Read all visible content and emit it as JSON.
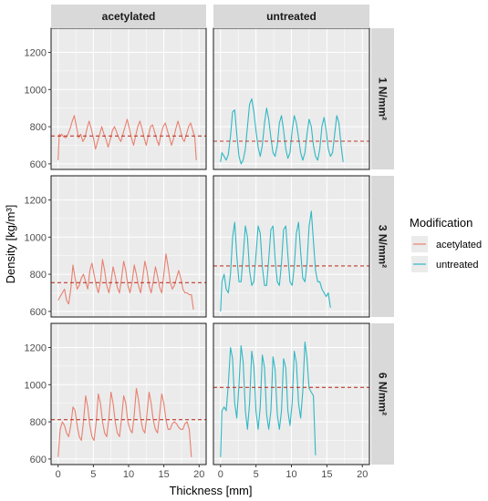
{
  "chart_data": {
    "type": "line",
    "title": "",
    "xlabel": "Thickness [mm]",
    "ylabel": "Density [kg/m³]",
    "xlim": [
      -1,
      21
    ],
    "ylim": [
      570,
      1330
    ],
    "x_ticks": [
      0,
      5,
      10,
      15,
      20
    ],
    "y_ticks": [
      600,
      800,
      1000,
      1200
    ],
    "grid": true,
    "facet_cols": [
      "acetylated",
      "untreated"
    ],
    "facet_rows": [
      "1 N/mm²",
      "3 N/mm²",
      "6 N/mm²"
    ],
    "legend": {
      "title": "Modification",
      "position": "right",
      "entries": [
        {
          "label": "acetylated",
          "color": "#E8806F"
        },
        {
          "label": "untreated",
          "color": "#2FB8C3"
        }
      ]
    },
    "mean_line_color": "#C0392B",
    "panels": [
      {
        "row": "1 N/mm²",
        "col": "acetylated",
        "series": "acetylated",
        "mean": 750,
        "x": [
          0,
          0.15,
          0.3,
          0.5,
          0.8,
          1.1,
          1.4,
          1.7,
          2.0,
          2.3,
          2.6,
          2.9,
          3.2,
          3.5,
          3.8,
          4.1,
          4.4,
          4.7,
          5.0,
          5.3,
          5.6,
          5.9,
          6.2,
          6.5,
          6.8,
          7.1,
          7.4,
          7.7,
          8.0,
          8.3,
          8.6,
          8.9,
          9.2,
          9.5,
          9.8,
          10.1,
          10.4,
          10.7,
          11.0,
          11.3,
          11.6,
          11.9,
          12.2,
          12.5,
          12.8,
          13.1,
          13.4,
          13.7,
          14.0,
          14.3,
          14.6,
          14.9,
          15.2,
          15.5,
          15.8,
          16.1,
          16.4,
          16.7,
          17.0,
          17.3,
          17.6,
          17.9,
          18.2,
          18.5,
          18.8,
          19.1,
          19.4,
          19.6
        ],
        "y": [
          620,
          760,
          750,
          760,
          745,
          740,
          760,
          790,
          830,
          860,
          800,
          740,
          760,
          720,
          740,
          790,
          830,
          790,
          740,
          680,
          720,
          760,
          800,
          760,
          730,
          690,
          730,
          780,
          800,
          770,
          740,
          720,
          760,
          800,
          840,
          790,
          740,
          700,
          750,
          800,
          830,
          790,
          740,
          700,
          750,
          800,
          810,
          770,
          730,
          700,
          760,
          800,
          820,
          780,
          740,
          700,
          740,
          790,
          830,
          790,
          740,
          720,
          760,
          800,
          820,
          780,
          740,
          620
        ]
      },
      {
        "row": "1 N/mm²",
        "col": "untreated",
        "series": "untreated",
        "mean": 722,
        "x": [
          0,
          0.2,
          0.5,
          0.8,
          1.1,
          1.4,
          1.7,
          2.0,
          2.3,
          2.6,
          2.9,
          3.2,
          3.5,
          3.8,
          4.1,
          4.4,
          4.7,
          5.0,
          5.3,
          5.6,
          5.9,
          6.2,
          6.5,
          6.8,
          7.1,
          7.4,
          7.7,
          8.0,
          8.3,
          8.6,
          8.9,
          9.2,
          9.5,
          9.8,
          10.1,
          10.4,
          10.7,
          11.0,
          11.3,
          11.6,
          11.9,
          12.2,
          12.5,
          12.8,
          13.1,
          13.4,
          13.7,
          14.0,
          14.3,
          14.6,
          14.9,
          15.2,
          15.5,
          15.8,
          16.1,
          16.4,
          16.7,
          17.0,
          17.3
        ],
        "y": [
          610,
          660,
          640,
          620,
          650,
          750,
          880,
          890,
          760,
          640,
          600,
          620,
          680,
          800,
          920,
          950,
          880,
          780,
          690,
          640,
          700,
          820,
          900,
          840,
          740,
          660,
          640,
          700,
          820,
          860,
          780,
          680,
          630,
          660,
          780,
          860,
          820,
          740,
          660,
          620,
          660,
          760,
          840,
          800,
          700,
          640,
          620,
          680,
          800,
          850,
          780,
          680,
          640,
          660,
          760,
          860,
          820,
          700,
          610
        ]
      },
      {
        "row": "3 N/mm²",
        "col": "acetylated",
        "series": "acetylated",
        "mean": 755,
        "x": [
          0,
          0.3,
          0.6,
          0.9,
          1.2,
          1.5,
          1.8,
          2.1,
          2.4,
          2.7,
          3.0,
          3.3,
          3.6,
          3.9,
          4.2,
          4.5,
          4.8,
          5.1,
          5.4,
          5.7,
          6.0,
          6.3,
          6.6,
          6.9,
          7.2,
          7.5,
          7.8,
          8.1,
          8.4,
          8.7,
          9.0,
          9.3,
          9.6,
          9.9,
          10.2,
          10.5,
          10.8,
          11.1,
          11.4,
          11.7,
          12.0,
          12.3,
          12.6,
          12.9,
          13.2,
          13.5,
          13.8,
          14.1,
          14.4,
          14.7,
          15.0,
          15.3,
          15.6,
          15.9,
          16.2,
          16.5,
          16.8,
          17.1,
          17.4,
          17.7,
          18.0,
          18.3,
          18.6,
          18.9,
          19.2
        ],
        "y": [
          660,
          680,
          700,
          720,
          660,
          640,
          720,
          850,
          780,
          720,
          740,
          780,
          800,
          760,
          720,
          820,
          860,
          800,
          740,
          700,
          760,
          880,
          820,
          740,
          700,
          760,
          840,
          790,
          730,
          700,
          780,
          870,
          820,
          740,
          700,
          760,
          850,
          800,
          740,
          700,
          780,
          870,
          820,
          740,
          700,
          760,
          840,
          790,
          730,
          700,
          800,
          910,
          840,
          760,
          720,
          740,
          780,
          820,
          780,
          720,
          700,
          700,
          690,
          690,
          610
        ]
      },
      {
        "row": "3 N/mm²",
        "col": "untreated",
        "series": "untreated",
        "mean": 845,
        "x": [
          0,
          0.2,
          0.5,
          0.8,
          1.1,
          1.4,
          1.7,
          2.0,
          2.3,
          2.6,
          2.9,
          3.2,
          3.5,
          3.8,
          4.1,
          4.4,
          4.7,
          5.0,
          5.3,
          5.6,
          5.9,
          6.2,
          6.5,
          6.8,
          7.1,
          7.4,
          7.7,
          8.0,
          8.3,
          8.6,
          8.9,
          9.2,
          9.5,
          9.8,
          10.1,
          10.4,
          10.7,
          11.0,
          11.3,
          11.6,
          11.9,
          12.2,
          12.5,
          12.8,
          13.1,
          13.4,
          13.7,
          14.0,
          14.3,
          14.6,
          14.9,
          15.2,
          15.5
        ],
        "y": [
          600,
          760,
          800,
          720,
          700,
          800,
          1000,
          1080,
          900,
          760,
          760,
          900,
          1060,
          1000,
          820,
          740,
          760,
          900,
          1060,
          1020,
          840,
          740,
          740,
          880,
          1040,
          1060,
          880,
          760,
          740,
          860,
          1040,
          1060,
          900,
          760,
          740,
          840,
          1020,
          1080,
          920,
          780,
          760,
          860,
          1060,
          1140,
          980,
          820,
          760,
          760,
          720,
          700,
          680,
          700,
          620
        ]
      },
      {
        "row": "6 N/mm²",
        "col": "acetylated",
        "series": "acetylated",
        "mean": 812,
        "x": [
          0,
          0.3,
          0.6,
          0.9,
          1.2,
          1.5,
          1.8,
          2.1,
          2.4,
          2.7,
          3.0,
          3.3,
          3.6,
          3.9,
          4.2,
          4.5,
          4.8,
          5.1,
          5.4,
          5.7,
          6.0,
          6.3,
          6.6,
          6.9,
          7.2,
          7.5,
          7.8,
          8.1,
          8.4,
          8.7,
          9.0,
          9.3,
          9.6,
          9.9,
          10.2,
          10.5,
          10.8,
          11.1,
          11.4,
          11.7,
          12.0,
          12.3,
          12.6,
          12.9,
          13.2,
          13.5,
          13.8,
          14.1,
          14.4,
          14.7,
          15.0,
          15.3,
          15.6,
          15.9,
          16.2,
          16.5,
          16.8,
          17.1,
          17.4,
          17.7,
          18.0,
          18.3,
          18.6,
          18.9
        ],
        "y": [
          610,
          760,
          800,
          780,
          740,
          720,
          780,
          880,
          860,
          780,
          720,
          700,
          800,
          940,
          880,
          780,
          720,
          700,
          800,
          950,
          900,
          800,
          740,
          720,
          820,
          960,
          900,
          800,
          740,
          720,
          820,
          940,
          900,
          800,
          760,
          740,
          840,
          980,
          920,
          820,
          760,
          740,
          840,
          960,
          900,
          810,
          760,
          740,
          840,
          950,
          900,
          810,
          760,
          760,
          790,
          800,
          790,
          770,
          760,
          760,
          790,
          800,
          760,
          610
        ]
      },
      {
        "row": "6 N/mm²",
        "col": "untreated",
        "series": "untreated",
        "mean": 985,
        "x": [
          0,
          0.2,
          0.5,
          0.8,
          1.1,
          1.4,
          1.7,
          2.0,
          2.3,
          2.6,
          2.9,
          3.2,
          3.5,
          3.8,
          4.1,
          4.4,
          4.7,
          5.0,
          5.3,
          5.6,
          5.9,
          6.2,
          6.5,
          6.8,
          7.1,
          7.4,
          7.7,
          8.0,
          8.3,
          8.6,
          8.9,
          9.2,
          9.5,
          9.8,
          10.1,
          10.4,
          10.7,
          11.0,
          11.3,
          11.6,
          11.9,
          12.2,
          12.5,
          12.8,
          13.1,
          13.4
        ],
        "y": [
          610,
          860,
          880,
          860,
          1000,
          1200,
          1140,
          900,
          820,
          1000,
          1210,
          1120,
          860,
          760,
          900,
          1180,
          1100,
          860,
          760,
          880,
          1160,
          1090,
          840,
          760,
          860,
          1150,
          1080,
          840,
          760,
          860,
          1140,
          1090,
          860,
          780,
          900,
          1180,
          1120,
          900,
          820,
          960,
          1230,
          1140,
          980,
          960,
          940,
          620
        ]
      }
    ]
  }
}
